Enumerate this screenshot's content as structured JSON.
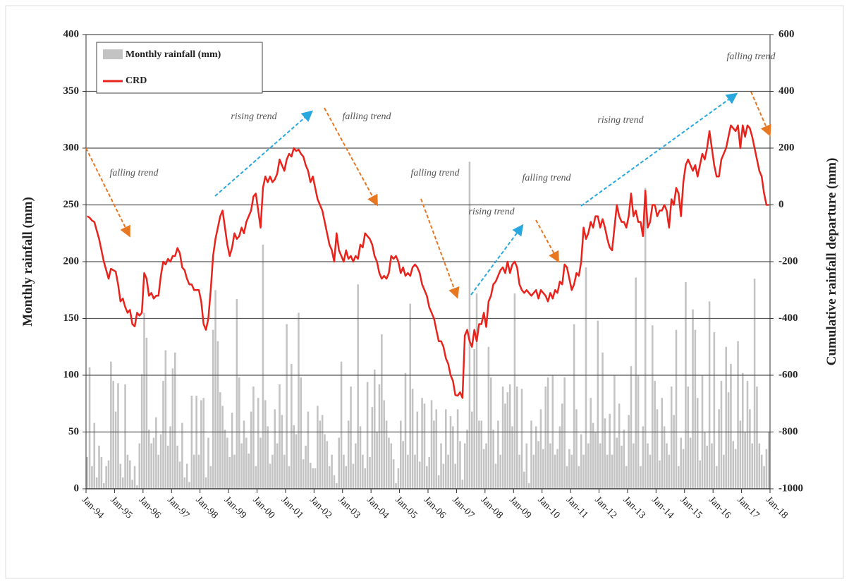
{
  "chart_data": {
    "type": "bar_line",
    "ylabel": "Monthly rainfall (mm)",
    "y2label": "Cumulative rainfall departure (mm)",
    "xlim": [
      0,
      288
    ],
    "xticks": [
      {
        "value": 0,
        "label": "Jan-94"
      },
      {
        "value": 12,
        "label": "Jan-95"
      },
      {
        "value": 24,
        "label": "Jan-96"
      },
      {
        "value": 36,
        "label": "Jan-97"
      },
      {
        "value": 48,
        "label": "Jan-98"
      },
      {
        "value": 60,
        "label": "Jan-99"
      },
      {
        "value": 72,
        "label": "Jan-00"
      },
      {
        "value": 84,
        "label": "Jan-01"
      },
      {
        "value": 96,
        "label": "Jan-02"
      },
      {
        "value": 108,
        "label": "Jan-03"
      },
      {
        "value": 120,
        "label": "Jan-04"
      },
      {
        "value": 132,
        "label": "Jan-05"
      },
      {
        "value": 144,
        "label": "Jan-06"
      },
      {
        "value": 156,
        "label": "Jan-07"
      },
      {
        "value": 168,
        "label": "Jan-08"
      },
      {
        "value": 180,
        "label": "Jan-09"
      },
      {
        "value": 192,
        "label": "Jan-10"
      },
      {
        "value": 204,
        "label": "Jan-11"
      },
      {
        "value": 216,
        "label": "Jan-12"
      },
      {
        "value": 228,
        "label": "Jan-13"
      },
      {
        "value": 240,
        "label": "Jan-14"
      },
      {
        "value": 252,
        "label": "Jan-15"
      },
      {
        "value": 264,
        "label": "Jan-16"
      },
      {
        "value": 276,
        "label": "Jan-17"
      },
      {
        "value": 288,
        "label": "Jan-18"
      }
    ],
    "ylim": [
      0,
      400
    ],
    "yticks": [
      0,
      50,
      100,
      150,
      200,
      250,
      300,
      350,
      400
    ],
    "y2lim": [
      -1000,
      600
    ],
    "y2ticks": [
      -1000,
      -800,
      -600,
      -400,
      -200,
      0,
      200,
      400,
      600
    ],
    "grid": true,
    "legend": "upper left",
    "x": [
      0,
      1,
      2,
      3,
      4,
      5,
      6,
      7,
      8,
      9,
      10,
      11,
      12,
      13,
      14,
      15,
      16,
      17,
      18,
      19,
      20,
      21,
      22,
      23,
      24,
      25,
      26,
      27,
      28,
      29,
      30,
      31,
      32,
      33,
      34,
      35,
      36,
      37,
      38,
      39,
      40,
      41,
      42,
      43,
      44,
      45,
      46,
      47,
      48,
      49,
      50,
      51,
      52,
      53,
      54,
      55,
      56,
      57,
      58,
      59,
      60,
      61,
      62,
      63,
      64,
      65,
      66,
      67,
      68,
      69,
      70,
      71,
      72,
      73,
      74,
      75,
      76,
      77,
      78,
      79,
      80,
      81,
      82,
      83,
      84,
      85,
      86,
      87,
      88,
      89,
      90,
      91,
      92,
      93,
      94,
      95,
      96,
      97,
      98,
      99,
      100,
      101,
      102,
      103,
      104,
      105,
      106,
      107,
      108,
      109,
      110,
      111,
      112,
      113,
      114,
      115,
      116,
      117,
      118,
      119,
      120,
      121,
      122,
      123,
      124,
      125,
      126,
      127,
      128,
      129,
      130,
      131,
      132,
      133,
      134,
      135,
      136,
      137,
      138,
      139,
      140,
      141,
      142,
      143,
      144,
      145,
      146,
      147,
      148,
      149,
      150,
      151,
      152,
      153,
      154,
      155,
      156,
      157,
      158,
      159,
      160,
      161,
      162,
      163,
      164,
      165,
      166,
      167,
      168,
      169,
      170,
      171,
      172,
      173,
      174,
      175,
      176,
      177,
      178,
      179,
      180,
      181,
      182,
      183,
      184,
      185,
      186,
      187,
      188,
      189,
      190,
      191,
      192,
      193,
      194,
      195,
      196,
      197,
      198,
      199,
      200,
      201,
      202,
      203,
      204,
      205,
      206,
      207,
      208,
      209,
      210,
      211,
      212,
      213,
      214,
      215,
      216,
      217,
      218,
      219,
      220,
      221,
      222,
      223,
      224,
      225,
      226,
      227,
      228,
      229,
      230,
      231,
      232,
      233,
      234,
      235,
      236,
      237,
      238,
      239,
      240,
      241,
      242,
      243,
      244,
      245,
      246,
      247,
      248,
      249,
      250,
      251,
      252,
      253,
      254,
      255,
      256,
      257,
      258,
      259,
      260,
      261,
      262,
      263,
      264,
      265,
      266,
      267,
      268,
      269,
      270,
      271,
      272,
      273,
      274,
      275,
      276,
      277,
      278,
      279,
      280,
      281,
      282,
      283,
      284,
      285,
      286,
      287
    ],
    "series": [
      {
        "name": "Monthly rainfall (mm)",
        "type": "bar",
        "color": "#c3c3c3",
        "values": [
          28,
          107,
          20,
          58,
          10,
          38,
          28,
          5,
          20,
          25,
          112,
          95,
          68,
          93,
          22,
          10,
          92,
          30,
          25,
          8,
          20,
          3,
          40,
          101,
          155,
          133,
          52,
          40,
          45,
          63,
          30,
          48,
          95,
          122,
          38,
          55,
          106,
          120,
          38,
          24,
          58,
          10,
          22,
          6,
          82,
          30,
          82,
          30,
          78,
          80,
          10,
          45,
          20,
          140,
          175,
          130,
          85,
          73,
          52,
          45,
          28,
          67,
          30,
          167,
          98,
          40,
          60,
          45,
          31,
          68,
          90,
          20,
          80,
          45,
          215,
          78,
          55,
          22,
          30,
          70,
          40,
          92,
          65,
          30,
          145,
          20,
          110,
          56,
          48,
          155,
          98,
          26,
          38,
          68,
          23,
          18,
          18,
          73,
          60,
          65,
          48,
          42,
          20,
          30,
          12,
          5,
          45,
          112,
          30,
          20,
          60,
          90,
          22,
          40,
          180,
          55,
          30,
          18,
          94,
          28,
          72,
          105,
          50,
          92,
          136,
          78,
          60,
          45,
          40,
          26,
          5,
          18,
          60,
          42,
          102,
          30,
          163,
          88,
          30,
          68,
          24,
          80,
          75,
          20,
          28,
          78,
          60,
          70,
          12,
          40,
          22,
          70,
          30,
          64,
          55,
          22,
          70,
          42,
          8,
          40,
          52,
          288,
          68,
          123,
          172,
          60,
          60,
          35,
          40,
          125,
          98,
          52,
          22,
          60,
          30,
          90,
          75,
          85,
          92,
          55,
          172,
          90,
          30,
          88,
          15,
          40,
          5,
          60,
          30,
          55,
          42,
          70,
          35,
          90,
          98,
          40,
          100,
          30,
          35,
          55,
          75,
          98,
          20,
          35,
          30,
          145,
          70,
          20,
          48,
          30,
          195,
          40,
          80,
          58,
          50,
          148,
          40,
          120,
          62,
          30,
          66,
          30,
          100,
          45,
          75,
          38,
          52,
          20,
          65,
          108,
          40,
          186,
          100,
          20,
          55,
          265,
          40,
          30,
          144,
          95,
          70,
          25,
          80,
          55,
          40,
          30,
          90,
          65,
          140,
          20,
          45,
          35,
          182,
          90,
          45,
          158,
          140,
          80,
          25,
          100,
          50,
          38,
          165,
          40,
          138,
          20,
          70,
          95,
          30,
          125,
          85,
          110,
          42,
          35,
          130,
          60,
          102,
          50,
          95,
          70,
          40,
          185,
          90,
          40,
          30,
          20,
          35,
          50
        ]
      },
      {
        "name": "CRD",
        "type": "line",
        "axis": "y2",
        "color": "#e8231c",
        "values": [
          -40,
          -45,
          -55,
          -60,
          -90,
          -120,
          -160,
          -200,
          -230,
          -260,
          -225,
          -230,
          -235,
          -280,
          -340,
          -330,
          -360,
          -380,
          -370,
          -420,
          -428,
          -380,
          -390,
          -380,
          -240,
          -260,
          -320,
          -310,
          -330,
          -320,
          -320,
          -250,
          -200,
          -210,
          -190,
          -200,
          -180,
          -180,
          -152,
          -170,
          -220,
          -230,
          -260,
          -280,
          -280,
          -300,
          -300,
          -300,
          -340,
          -420,
          -440,
          -400,
          -300,
          -180,
          -120,
          -80,
          -40,
          -20,
          -80,
          -140,
          -180,
          -150,
          -100,
          -120,
          -110,
          -80,
          -100,
          -60,
          -40,
          -20,
          30,
          40,
          -20,
          -80,
          60,
          100,
          80,
          100,
          80,
          90,
          110,
          160,
          140,
          120,
          160,
          180,
          170,
          200,
          190,
          195,
          180,
          170,
          140,
          120,
          80,
          100,
          60,
          20,
          0,
          -20,
          -60,
          -100,
          -140,
          -160,
          -200,
          -100,
          -160,
          -180,
          -200,
          -160,
          -190,
          -180,
          -200,
          -180,
          -190,
          -140,
          -150,
          -100,
          -110,
          -120,
          -140,
          -180,
          -200,
          -240,
          -260,
          -250,
          -260,
          -240,
          -180,
          -190,
          -180,
          -200,
          -240,
          -220,
          -250,
          -240,
          -250,
          -220,
          -210,
          -220,
          -240,
          -280,
          -300,
          -320,
          -360,
          -380,
          -400,
          -440,
          -480,
          -480,
          -500,
          -540,
          -560,
          -600,
          -620,
          -670,
          -672,
          -660,
          -680,
          -460,
          -440,
          -480,
          -500,
          -440,
          -480,
          -420,
          -420,
          -380,
          -430,
          -340,
          -320,
          -280,
          -270,
          -250,
          -230,
          -220,
          -240,
          -200,
          -240,
          -210,
          -200,
          -220,
          -280,
          -300,
          -310,
          -300,
          -310,
          -320,
          -310,
          -300,
          -330,
          -300,
          -310,
          -320,
          -340,
          -310,
          -330,
          -300,
          -310,
          -270,
          -280,
          -210,
          -220,
          -260,
          -300,
          -280,
          -240,
          -250,
          -200,
          -80,
          -120,
          -100,
          -60,
          -80,
          -40,
          -40,
          -80,
          -50,
          -80,
          -120,
          -150,
          -160,
          -80,
          0,
          -40,
          -60,
          -60,
          -80,
          -40,
          40,
          -40,
          -20,
          -60,
          -60,
          -110,
          50,
          -80,
          -60,
          0,
          0,
          -40,
          -20,
          -20,
          0,
          -20,
          -80,
          20,
          0,
          60,
          40,
          -40,
          80,
          140,
          160,
          140,
          120,
          140,
          100,
          140,
          180,
          160,
          200,
          260,
          200,
          140,
          100,
          100,
          160,
          180,
          200,
          240,
          280,
          270,
          260,
          280,
          200,
          280,
          240,
          280,
          270,
          240,
          200,
          160,
          120,
          100,
          40,
          0,
          0
        ]
      }
    ],
    "annotations": [
      "falling trend",
      "rising trend",
      "falling trend",
      "falling trend",
      "rising trend",
      "falling trend",
      "rising trend",
      "falling trend"
    ]
  }
}
